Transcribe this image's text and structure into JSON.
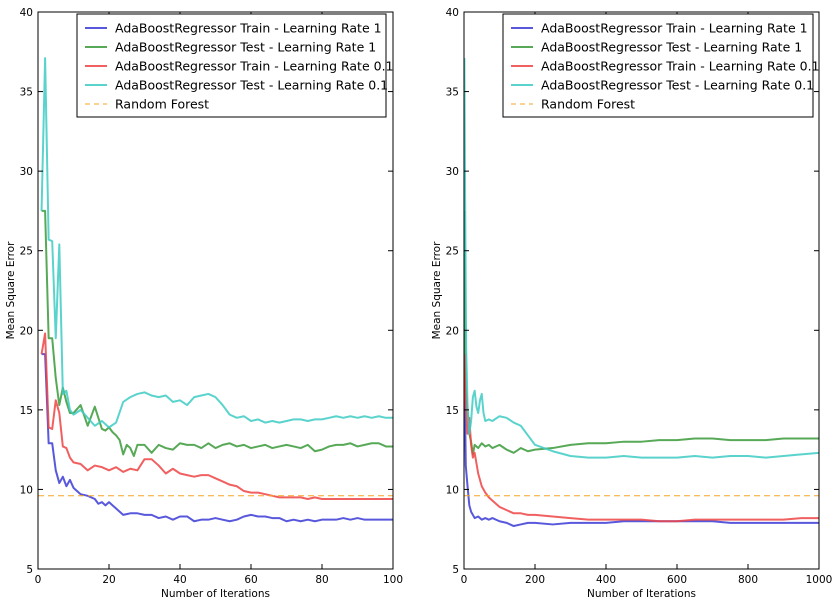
{
  "chart_data": [
    {
      "type": "line",
      "xlabel": "Number of Iterations",
      "ylabel": "Mean Square Error",
      "xlim": [
        0,
        100
      ],
      "ylim": [
        5,
        40
      ],
      "xticks": [
        0,
        20,
        40,
        60,
        80,
        100
      ],
      "yticks": [
        5,
        10,
        15,
        20,
        25,
        30,
        35,
        40
      ],
      "legend": "top-right",
      "series": [
        {
          "name": "AdaBoostRegressor Train - Learning Rate 1",
          "color": "#3b3bd6",
          "x": [
            1,
            2,
            3,
            4,
            5,
            6,
            7,
            8,
            9,
            10,
            12,
            14,
            16,
            17,
            18,
            19,
            20,
            21,
            22,
            24,
            26,
            28,
            30,
            32,
            34,
            36,
            38,
            40,
            42,
            44,
            46,
            48,
            50,
            52,
            54,
            56,
            58,
            60,
            62,
            64,
            66,
            68,
            70,
            72,
            74,
            76,
            78,
            80,
            82,
            84,
            86,
            88,
            90,
            92,
            94,
            96,
            98,
            100
          ],
          "y": [
            18.5,
            18.5,
            12.9,
            12.9,
            11.2,
            10.4,
            10.8,
            10.2,
            10.6,
            10.1,
            9.7,
            9.6,
            9.4,
            9.1,
            9.2,
            9.0,
            9.2,
            9.0,
            8.8,
            8.4,
            8.5,
            8.5,
            8.4,
            8.4,
            8.2,
            8.3,
            8.1,
            8.3,
            8.3,
            8.0,
            8.1,
            8.1,
            8.2,
            8.1,
            8.0,
            8.1,
            8.3,
            8.4,
            8.3,
            8.3,
            8.2,
            8.2,
            8.0,
            8.1,
            8.0,
            8.1,
            8.0,
            8.1,
            8.1,
            8.1,
            8.2,
            8.1,
            8.2,
            8.1,
            8.1,
            8.1,
            8.1,
            8.1
          ]
        },
        {
          "name": "AdaBoostRegressor Test - Learning Rate 1",
          "color": "#3a9a3a",
          "x": [
            1,
            2,
            3,
            4,
            5,
            6,
            7,
            8,
            9,
            10,
            12,
            14,
            16,
            17,
            18,
            19,
            20,
            21,
            22,
            23,
            24,
            25,
            26,
            27,
            28,
            30,
            32,
            34,
            36,
            38,
            40,
            42,
            44,
            46,
            48,
            50,
            52,
            54,
            56,
            58,
            60,
            62,
            64,
            66,
            68,
            70,
            72,
            74,
            76,
            78,
            80,
            82,
            84,
            86,
            88,
            90,
            92,
            94,
            96,
            98,
            100
          ],
          "y": [
            27.5,
            27.5,
            19.5,
            19.5,
            17.0,
            15.3,
            16.4,
            15.5,
            14.8,
            14.8,
            15.3,
            14.0,
            15.2,
            14.5,
            13.8,
            13.7,
            13.9,
            13.6,
            13.4,
            13.1,
            12.2,
            12.8,
            12.6,
            12.1,
            12.8,
            12.8,
            12.3,
            12.8,
            12.6,
            12.5,
            12.9,
            12.8,
            12.8,
            12.6,
            12.9,
            12.6,
            12.8,
            12.9,
            12.7,
            12.8,
            12.6,
            12.7,
            12.8,
            12.6,
            12.7,
            12.8,
            12.7,
            12.6,
            12.8,
            12.4,
            12.5,
            12.7,
            12.8,
            12.8,
            12.9,
            12.7,
            12.8,
            12.9,
            12.9,
            12.7,
            12.7
          ]
        },
        {
          "name": "AdaBoostRegressor Train - Learning Rate 0.1",
          "color": "#ee4444",
          "x": [
            1,
            2,
            3,
            4,
            5,
            6,
            7,
            8,
            9,
            10,
            12,
            14,
            16,
            18,
            20,
            22,
            24,
            26,
            28,
            30,
            32,
            34,
            36,
            38,
            40,
            42,
            44,
            46,
            48,
            50,
            52,
            54,
            56,
            58,
            60,
            62,
            64,
            66,
            68,
            70,
            72,
            74,
            76,
            78,
            80,
            82,
            84,
            86,
            88,
            90,
            92,
            94,
            96,
            98,
            100
          ],
          "y": [
            18.5,
            19.8,
            13.9,
            13.8,
            15.6,
            14.8,
            12.7,
            12.6,
            12.0,
            11.7,
            11.6,
            11.2,
            11.5,
            11.4,
            11.2,
            11.4,
            11.1,
            11.3,
            11.2,
            11.9,
            11.9,
            11.5,
            11.0,
            11.3,
            11.0,
            10.9,
            10.8,
            10.9,
            10.9,
            10.7,
            10.5,
            10.3,
            10.2,
            9.9,
            9.8,
            9.8,
            9.7,
            9.6,
            9.5,
            9.5,
            9.5,
            9.5,
            9.4,
            9.5,
            9.4,
            9.4,
            9.4,
            9.4,
            9.4,
            9.4,
            9.4,
            9.4,
            9.4,
            9.4,
            9.4
          ]
        },
        {
          "name": "AdaBoostRegressor Test - Learning Rate 0.1",
          "color": "#3ecbc4",
          "x": [
            1,
            2,
            3,
            4,
            5,
            6,
            7,
            8,
            9,
            10,
            12,
            14,
            16,
            18,
            20,
            22,
            24,
            26,
            28,
            30,
            32,
            34,
            36,
            38,
            40,
            42,
            44,
            46,
            48,
            50,
            52,
            54,
            56,
            58,
            60,
            62,
            64,
            66,
            68,
            70,
            72,
            74,
            76,
            78,
            80,
            82,
            84,
            86,
            88,
            90,
            92,
            94,
            96,
            98,
            100
          ],
          "y": [
            27.5,
            37.1,
            25.7,
            25.6,
            19.5,
            25.4,
            16.0,
            16.2,
            15.0,
            14.7,
            15.0,
            14.5,
            14.0,
            14.3,
            13.9,
            14.2,
            15.5,
            15.8,
            16.0,
            16.1,
            15.9,
            15.8,
            15.9,
            15.5,
            15.6,
            15.3,
            15.8,
            15.9,
            16.0,
            15.8,
            15.3,
            14.7,
            14.5,
            14.6,
            14.3,
            14.4,
            14.2,
            14.3,
            14.2,
            14.3,
            14.4,
            14.4,
            14.3,
            14.4,
            14.4,
            14.5,
            14.6,
            14.5,
            14.6,
            14.5,
            14.6,
            14.5,
            14.6,
            14.5,
            14.5
          ]
        },
        {
          "name": "Random Forest",
          "color": "#f5a623",
          "dashed": true,
          "x": [
            0,
            100
          ],
          "y": [
            9.6,
            9.6
          ]
        }
      ]
    },
    {
      "type": "line",
      "xlabel": "Number of Iterations",
      "ylabel": "Mean Square Error",
      "xlim": [
        0,
        1000
      ],
      "ylim": [
        5,
        40
      ],
      "xticks": [
        0,
        200,
        400,
        600,
        800,
        1000
      ],
      "yticks": [
        5,
        10,
        15,
        20,
        25,
        30,
        35,
        40
      ],
      "legend": "top-right",
      "series": [
        {
          "name": "AdaBoostRegressor Train - Learning Rate 1",
          "color": "#3b3bd6",
          "x": [
            1,
            5,
            10,
            15,
            20,
            30,
            40,
            50,
            60,
            70,
            80,
            100,
            120,
            140,
            160,
            180,
            200,
            250,
            300,
            350,
            400,
            450,
            500,
            550,
            600,
            650,
            700,
            750,
            800,
            850,
            900,
            950,
            1000
          ],
          "y": [
            18.5,
            11.5,
            10.2,
            9.0,
            8.6,
            8.2,
            8.3,
            8.1,
            8.2,
            8.1,
            8.2,
            8.0,
            7.9,
            7.7,
            7.8,
            7.9,
            7.9,
            7.8,
            7.9,
            7.9,
            7.9,
            8.0,
            8.0,
            8.0,
            8.0,
            8.0,
            8.0,
            7.9,
            7.9,
            7.9,
            7.9,
            7.9,
            7.9
          ]
        },
        {
          "name": "AdaBoostRegressor Test - Learning Rate 1",
          "color": "#3a9a3a",
          "x": [
            1,
            5,
            10,
            15,
            20,
            25,
            30,
            40,
            50,
            60,
            70,
            80,
            100,
            120,
            140,
            160,
            180,
            200,
            250,
            300,
            350,
            400,
            450,
            500,
            550,
            600,
            650,
            700,
            750,
            800,
            850,
            900,
            950,
            1000
          ],
          "y": [
            27.5,
            16.5,
            15.0,
            13.5,
            13.0,
            12.2,
            12.8,
            12.6,
            12.9,
            12.7,
            12.8,
            12.6,
            12.8,
            12.5,
            12.3,
            12.6,
            12.4,
            12.5,
            12.6,
            12.8,
            12.9,
            12.9,
            13.0,
            13.0,
            13.1,
            13.1,
            13.2,
            13.2,
            13.1,
            13.1,
            13.1,
            13.2,
            13.2,
            13.2
          ]
        },
        {
          "name": "AdaBoostRegressor Train - Learning Rate 0.1",
          "color": "#ee4444",
          "x": [
            1,
            5,
            10,
            15,
            20,
            25,
            30,
            40,
            50,
            60,
            70,
            80,
            100,
            120,
            140,
            160,
            180,
            200,
            250,
            300,
            350,
            400,
            450,
            500,
            550,
            600,
            650,
            700,
            750,
            800,
            850,
            900,
            950,
            1000
          ],
          "y": [
            18.5,
            15.2,
            13.5,
            14.5,
            12.8,
            12.0,
            12.3,
            11.0,
            10.2,
            9.8,
            9.5,
            9.3,
            8.9,
            8.7,
            8.5,
            8.5,
            8.4,
            8.4,
            8.3,
            8.2,
            8.1,
            8.1,
            8.1,
            8.1,
            8.0,
            8.0,
            8.1,
            8.1,
            8.1,
            8.1,
            8.1,
            8.1,
            8.2,
            8.2
          ]
        },
        {
          "name": "AdaBoostRegressor Test - Learning Rate 0.1",
          "color": "#3ecbc4",
          "x": [
            1,
            3,
            6,
            10,
            15,
            20,
            25,
            30,
            35,
            40,
            45,
            50,
            55,
            60,
            70,
            80,
            100,
            120,
            140,
            160,
            180,
            200,
            250,
            300,
            350,
            400,
            450,
            500,
            550,
            600,
            650,
            700,
            750,
            800,
            850,
            900,
            950,
            1000
          ],
          "y": [
            37.1,
            29.0,
            19.0,
            15.2,
            13.5,
            14.3,
            15.8,
            16.2,
            15.2,
            14.8,
            15.6,
            16.0,
            14.8,
            14.3,
            14.4,
            14.3,
            14.6,
            14.5,
            14.2,
            14.0,
            13.4,
            12.8,
            12.4,
            12.1,
            12.0,
            12.0,
            12.1,
            12.0,
            12.0,
            12.0,
            12.1,
            12.0,
            12.1,
            12.1,
            12.0,
            12.1,
            12.2,
            12.3
          ]
        },
        {
          "name": "Random Forest",
          "color": "#f5a623",
          "dashed": true,
          "x": [
            0,
            1000
          ],
          "y": [
            9.6,
            9.6
          ]
        }
      ]
    }
  ]
}
